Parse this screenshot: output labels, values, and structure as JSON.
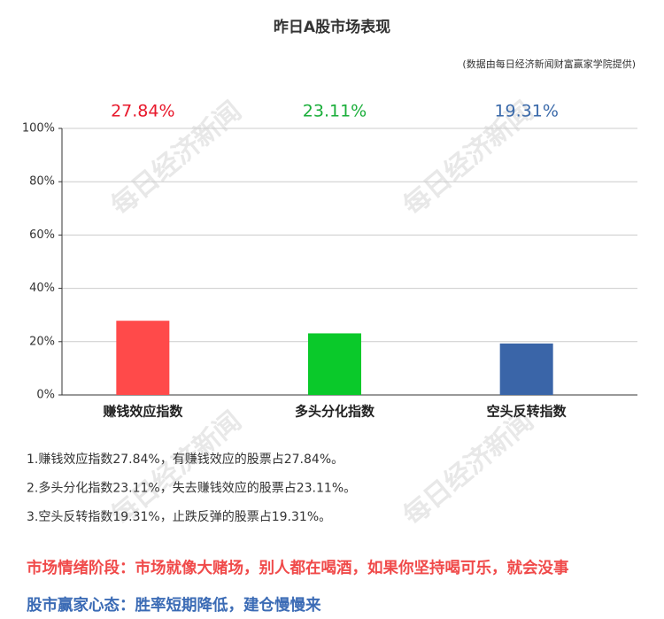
{
  "chart_data": {
    "type": "bar",
    "title": "昨日A股市场表现",
    "subtitle": "(数据由每日经济新闻财富赢家学院提供)",
    "categories": [
      "赚钱效应指数",
      "多头分化指数",
      "空头反转指数"
    ],
    "values": [
      27.84,
      23.11,
      19.31
    ],
    "value_labels": [
      "27.84%",
      "23.11%",
      "19.31%"
    ],
    "colors": [
      "#ff4a4a",
      "#0ac92a",
      "#3a65a8"
    ],
    "label_colors": [
      "#e8192c",
      "#1aae3a",
      "#3b6aaa"
    ],
    "ylim": [
      0,
      100
    ],
    "yticks": [
      {
        "value": 0,
        "label": "0%"
      },
      {
        "value": 20,
        "label": "20%"
      },
      {
        "value": 40,
        "label": "40%"
      },
      {
        "value": 60,
        "label": "60%"
      },
      {
        "value": 80,
        "label": "80%"
      },
      {
        "value": 100,
        "label": "100%"
      }
    ],
    "grid": true
  },
  "watermark": "每日经济新闻",
  "notes": [
    "1.赚钱效应指数27.84%，有赚钱效应的股票占27.84%。",
    "2.多头分化指数23.11%，失去赚钱效应的股票占23.11%。",
    "3.空头反转指数19.31%，止跌反弹的股票占19.31%。"
  ],
  "footer_lines": [
    {
      "text": "市场情绪阶段：市场就像大赌场，别人都在喝酒，如果你坚持喝可乐，就会没事",
      "color": "#f04a4a"
    },
    {
      "text": "股市赢家心态：胜率短期降低，建仓慢慢来",
      "color": "#3b6bb5"
    }
  ]
}
